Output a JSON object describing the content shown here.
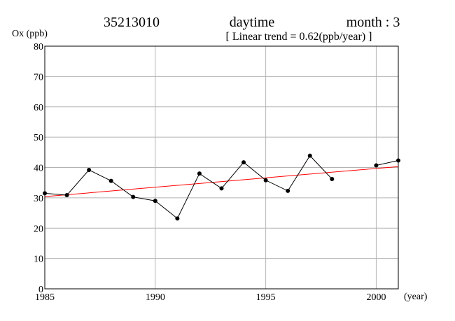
{
  "header": {
    "station": "35213010",
    "period": "daytime",
    "month": "month : 3",
    "trend": "[ Linear trend = 0.62(ppb/year) ]"
  },
  "chart_data": {
    "type": "line",
    "ylabel": "Ox (ppb)",
    "xlabel": "(year)",
    "xlim": [
      1985,
      2001
    ],
    "ylim": [
      0,
      80
    ],
    "x_ticks": [
      1985,
      1990,
      1995,
      2000
    ],
    "y_ticks": [
      0,
      10,
      20,
      30,
      40,
      50,
      60,
      70,
      80
    ],
    "grid": true,
    "series": [
      {
        "color": "#000000",
        "x": [
          1985,
          1986,
          1987,
          1988,
          1989,
          1990,
          1991,
          1992,
          1993,
          1994,
          1995,
          1996,
          1997,
          1998,
          2000,
          2001
        ],
        "values": [
          31.5,
          30.9,
          39.2,
          35.6,
          30.3,
          29.0,
          23.2,
          38.0,
          33.1,
          41.7,
          35.8,
          32.3,
          43.9,
          36.2,
          40.7,
          42.3
        ],
        "segments": [
          [
            1985,
            1998
          ],
          [
            2000,
            2001
          ]
        ]
      }
    ],
    "trend_line": {
      "color": "#ff0000",
      "slope": 0.62,
      "x": [
        1985,
        2001
      ],
      "values": [
        30.4,
        40.3
      ]
    }
  }
}
